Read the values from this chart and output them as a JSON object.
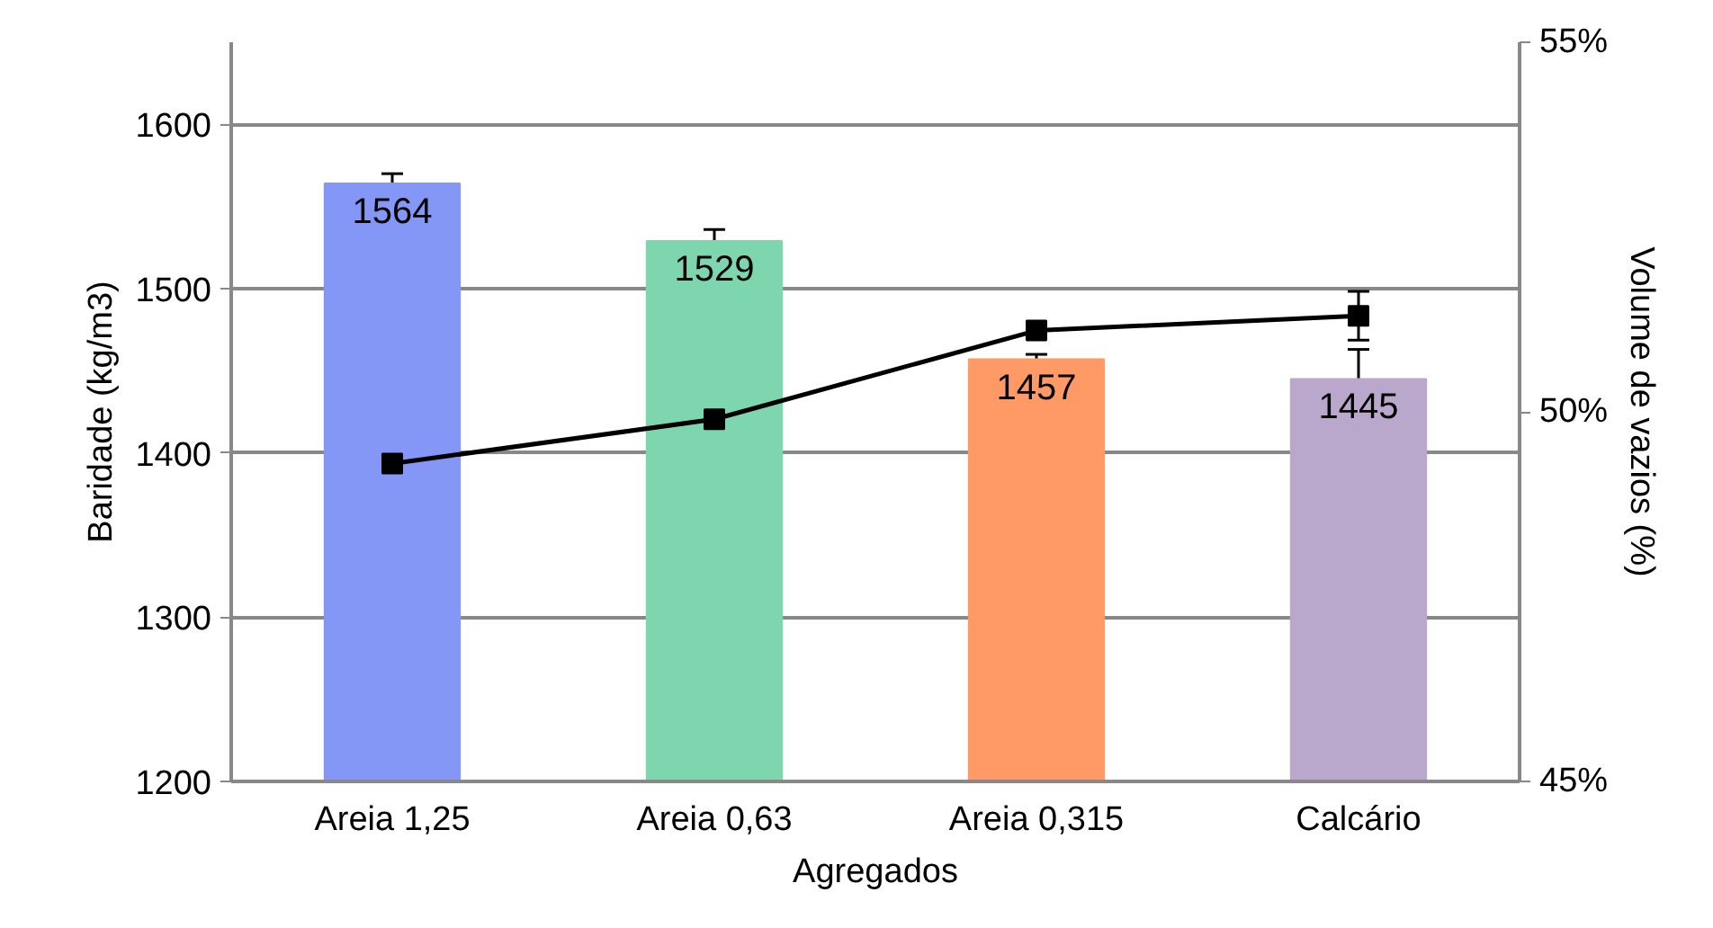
{
  "chart_data": {
    "type": "bar",
    "xlabel": "Agregados",
    "ylabel": "Baridade (kg/m3)",
    "y2label": "Volume de vazios (%)",
    "categories": [
      "Areia 1,25",
      "Areia 0,63",
      "Areia 0,315",
      "Calcário"
    ],
    "series": [
      {
        "colors": [
          "#8497f7",
          "#7dd6ae",
          "#ff9966",
          "#b9a8cb"
        ],
        "values": [
          1564,
          1529,
          1457,
          1445
        ],
        "errors": [
          6,
          7,
          3,
          18
        ],
        "value_labels": [
          "1564",
          "1529",
          "1457",
          "1445"
        ]
      },
      {
        "type": "line",
        "axis": "y2",
        "color": "#000000",
        "values": [
          49.3,
          49.9,
          51.1,
          51.3
        ],
        "errors": [
          null,
          null,
          null,
          0.33
        ],
        "marker": "square",
        "line_style": "solid"
      }
    ],
    "ylim": [
      1200,
      1650
    ],
    "yticks": [
      1200,
      1300,
      1400,
      1500,
      1600
    ],
    "y2lim": [
      45,
      55
    ],
    "y2ticks": [
      {
        "value": 45,
        "label": "45%"
      },
      {
        "value": 50,
        "label": "50%"
      },
      {
        "value": 55,
        "label": "55%"
      }
    ],
    "grid": "y"
  }
}
